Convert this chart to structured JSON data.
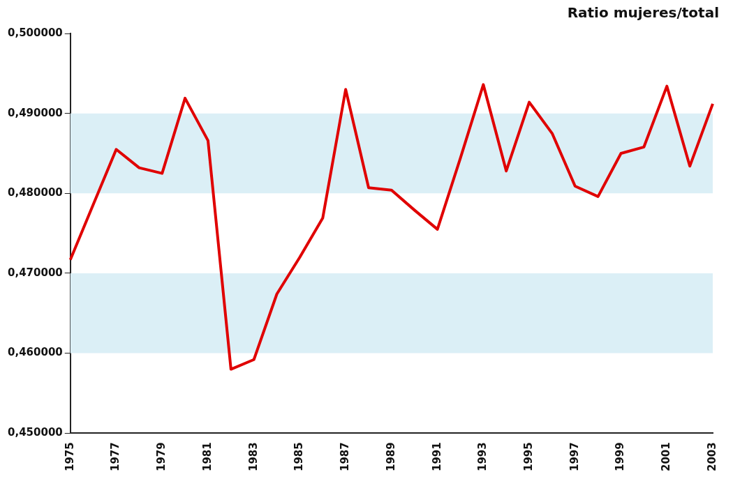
{
  "chart_data": {
    "type": "line",
    "title": "Ratio mujeres/total",
    "categories": [
      "1975",
      null,
      "1977",
      null,
      "1979",
      null,
      "1981",
      null,
      "1983",
      null,
      "1985",
      null,
      "1987",
      null,
      "1989",
      null,
      "1991",
      null,
      "1993",
      null,
      "1995",
      null,
      "1997",
      null,
      "1999",
      null,
      "2001",
      null,
      "2003"
    ],
    "series": [
      {
        "color": "#e00000",
        "values": [
          0.4717,
          0.4786,
          0.4855,
          0.4832,
          0.4825,
          0.4919,
          0.4866,
          0.458,
          0.4592,
          0.4674,
          0.472,
          0.4769,
          0.493,
          0.4807,
          0.4804,
          0.4779,
          0.4755,
          0.4844,
          0.4936,
          0.4828,
          0.4914,
          0.4875,
          0.4809,
          0.4796,
          0.485,
          0.4858,
          0.4934,
          0.4834,
          0.4912
        ]
      }
    ],
    "ylim": [
      0.45,
      0.5
    ],
    "yticks": [
      {
        "value": 0.45,
        "label": "0,450000"
      },
      {
        "value": 0.46,
        "label": "0,460000"
      },
      {
        "value": 0.47,
        "label": "0,470000"
      },
      {
        "value": 0.48,
        "label": "0,480000"
      },
      {
        "value": 0.49,
        "label": "0,490000"
      },
      {
        "value": 0.5,
        "label": "0,500000"
      }
    ],
    "bands": [
      {
        "axis": "y",
        "from": 0.48,
        "to": 0.49,
        "color": "#dbeff6"
      },
      {
        "axis": "y",
        "from": 0.46,
        "to": 0.47,
        "color": "#dbeff6"
      }
    ],
    "grid": false,
    "legend": false,
    "marker": "none",
    "line_style": "solid"
  }
}
